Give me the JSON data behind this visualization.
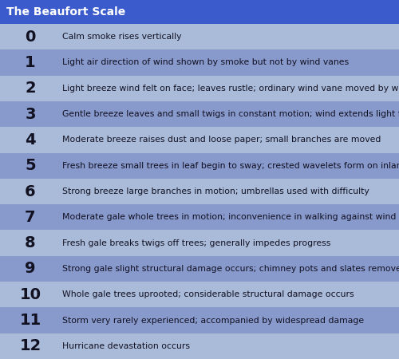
{
  "title": "The Beaufort Scale",
  "title_bg": "#3b5bcc",
  "title_color": "#ffffff",
  "title_fontsize": 10,
  "bg_color": "#8899cc",
  "row_color_light": "#aabbd9",
  "row_color_dark": "#8899cc",
  "number_color": "#111122",
  "text_color": "#111122",
  "number_fontsize": 14,
  "text_fontsize": 7.8,
  "rows": [
    {
      "num": "0",
      "desc": "Calm smoke rises vertically"
    },
    {
      "num": "1",
      "desc": "Light air direction of wind shown by smoke but not by wind vanes"
    },
    {
      "num": "2",
      "desc": "Light breeze wind felt on face; leaves rustle; ordinary wind vane moved by wind"
    },
    {
      "num": "3",
      "desc": "Gentle breeze leaves and small twigs in constant motion; wind extends light flag"
    },
    {
      "num": "4",
      "desc": "Moderate breeze raises dust and loose paper; small branches are moved"
    },
    {
      "num": "5",
      "desc": "Fresh breeze small trees in leaf begin to sway; crested wavelets form on inland water"
    },
    {
      "num": "6",
      "desc": "Strong breeze large branches in motion; umbrellas used with difficulty"
    },
    {
      "num": "7",
      "desc": "Moderate gale whole trees in motion; inconvenience in walking against wind"
    },
    {
      "num": "8",
      "desc": "Fresh gale breaks twigs off trees; generally impedes progress"
    },
    {
      "num": "9",
      "desc": "Strong gale slight structural damage occurs; chimney pots and slates removed"
    },
    {
      "num": "10",
      "desc": "Whole gale trees uprooted; considerable structural damage occurs"
    },
    {
      "num": "11",
      "desc": "Storm very rarely experienced; accompanied by widespread damage"
    },
    {
      "num": "12",
      "desc": "Hurricane devastation occurs"
    }
  ]
}
